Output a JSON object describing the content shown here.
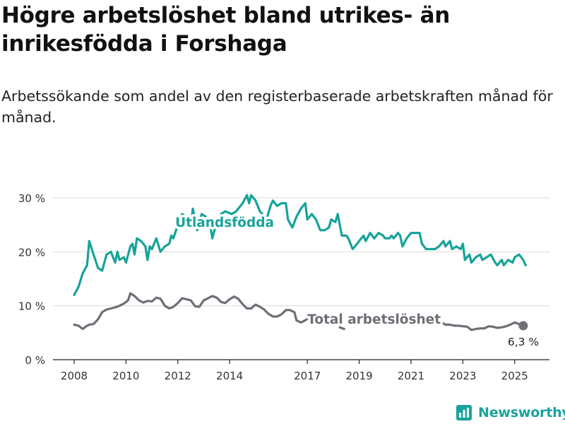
{
  "title": "Högre arbetslöshet bland utrikes- än inrikesfödda i Forshaga",
  "subtitle": "Arbetssökande som andel av den registerbaserade arbetskraften månad för månad.",
  "brand": "Newsworthy",
  "colors": {
    "utlandsfodda": "#17a39a",
    "total": "#6e6e76",
    "grid": "#d9d9d9",
    "brand": "#1aa39d"
  },
  "chart_data": {
    "type": "line",
    "x_unit": "year",
    "xlim": [
      2007.6,
      2026.2
    ],
    "ylim": [
      0,
      30
    ],
    "grid": true,
    "y_ticks": [
      0,
      10,
      20,
      30
    ],
    "y_tick_labels": [
      "0 %",
      "10 %",
      "20 %",
      "30 %"
    ],
    "x_ticks": [
      2008,
      2010,
      2012,
      2014,
      2017,
      2019,
      2021,
      2023,
      2025
    ],
    "x_tick_labels": [
      "2008",
      "2010",
      "2012",
      "2014",
      "2017",
      "2019",
      "2021",
      "2023",
      "2025"
    ],
    "end_label": "6,3 %",
    "series": [
      {
        "name": "Utlandsfödda",
        "color": "#17a39a",
        "points": [
          [
            2008.0,
            12
          ],
          [
            2008.17,
            13.5
          ],
          [
            2008.33,
            16
          ],
          [
            2008.5,
            17.5
          ],
          [
            2008.58,
            22
          ],
          [
            2008.75,
            19.5
          ],
          [
            2008.92,
            17
          ],
          [
            2009.08,
            16.5
          ],
          [
            2009.25,
            19.5
          ],
          [
            2009.42,
            20
          ],
          [
            2009.58,
            18
          ],
          [
            2009.67,
            20
          ],
          [
            2009.75,
            18.5
          ],
          [
            2009.92,
            19
          ],
          [
            2010.0,
            18
          ],
          [
            2010.17,
            21
          ],
          [
            2010.25,
            21.5
          ],
          [
            2010.33,
            19.5
          ],
          [
            2010.42,
            22.5
          ],
          [
            2010.58,
            22
          ],
          [
            2010.75,
            21
          ],
          [
            2010.83,
            18.5
          ],
          [
            2010.92,
            21
          ],
          [
            2011.0,
            20.5
          ],
          [
            2011.17,
            22.5
          ],
          [
            2011.33,
            20
          ],
          [
            2011.5,
            21
          ],
          [
            2011.67,
            21.5
          ],
          [
            2011.75,
            23
          ],
          [
            2011.83,
            22.5
          ],
          [
            2012.0,
            25
          ],
          [
            2012.17,
            27
          ],
          [
            2012.42,
            26
          ],
          [
            2012.5,
            24.5
          ],
          [
            2012.58,
            28
          ],
          [
            2012.75,
            24
          ],
          [
            2012.92,
            27
          ],
          [
            2013.08,
            26.5
          ],
          [
            2013.25,
            25
          ],
          [
            2013.33,
            22.5
          ],
          [
            2013.5,
            25.5
          ],
          [
            2013.67,
            27
          ],
          [
            2013.83,
            27.5
          ],
          [
            2014.08,
            27
          ],
          [
            2014.25,
            27.5
          ],
          [
            2014.5,
            29
          ],
          [
            2014.67,
            30.5
          ],
          [
            2014.75,
            29
          ],
          [
            2014.83,
            30.5
          ],
          [
            2015.0,
            29.5
          ],
          [
            2015.17,
            27.5
          ],
          [
            2015.42,
            26
          ],
          [
            2015.58,
            28.5
          ],
          [
            2015.67,
            29.5
          ],
          [
            2015.83,
            28.5
          ],
          [
            2016.0,
            29
          ],
          [
            2016.17,
            29
          ],
          [
            2016.25,
            26
          ],
          [
            2016.42,
            24.5
          ],
          [
            2016.58,
            26.5
          ],
          [
            2016.75,
            28
          ],
          [
            2016.92,
            29
          ],
          [
            2017.0,
            26
          ],
          [
            2017.17,
            27
          ],
          [
            2017.33,
            26
          ],
          [
            2017.5,
            24
          ],
          [
            2017.67,
            24
          ],
          [
            2017.83,
            24.5
          ],
          [
            2017.92,
            26
          ],
          [
            2018.08,
            25.5
          ],
          [
            2018.17,
            27
          ],
          [
            2018.33,
            23
          ],
          [
            2018.5,
            23
          ],
          [
            2018.58,
            22.5
          ],
          [
            2018.75,
            20.5
          ],
          [
            2018.92,
            21.5
          ],
          [
            2019.08,
            22.5
          ],
          [
            2019.17,
            23
          ],
          [
            2019.25,
            22
          ],
          [
            2019.42,
            23.5
          ],
          [
            2019.58,
            22.5
          ],
          [
            2019.75,
            23.5
          ],
          [
            2019.92,
            23
          ],
          [
            2020.0,
            22.5
          ],
          [
            2020.17,
            22.5
          ],
          [
            2020.25,
            23
          ],
          [
            2020.33,
            22.5
          ],
          [
            2020.5,
            23.5
          ],
          [
            2020.58,
            23
          ],
          [
            2020.67,
            21
          ],
          [
            2020.83,
            22.5
          ],
          [
            2021.0,
            23.5
          ],
          [
            2021.17,
            23.5
          ],
          [
            2021.33,
            23.5
          ],
          [
            2021.42,
            21.5
          ],
          [
            2021.58,
            20.5
          ],
          [
            2021.75,
            20.5
          ],
          [
            2021.92,
            20.5
          ],
          [
            2022.08,
            21
          ],
          [
            2022.25,
            22
          ],
          [
            2022.33,
            21
          ],
          [
            2022.5,
            22
          ],
          [
            2022.58,
            20.5
          ],
          [
            2022.75,
            21
          ],
          [
            2022.92,
            20.5
          ],
          [
            2023.0,
            21.5
          ],
          [
            2023.08,
            18.5
          ],
          [
            2023.25,
            19.5
          ],
          [
            2023.33,
            18
          ],
          [
            2023.5,
            19
          ],
          [
            2023.67,
            19.5
          ],
          [
            2023.75,
            18.5
          ],
          [
            2023.92,
            19
          ],
          [
            2024.08,
            19.5
          ],
          [
            2024.25,
            18
          ],
          [
            2024.33,
            17.5
          ],
          [
            2024.5,
            18.5
          ],
          [
            2024.58,
            17.5
          ],
          [
            2024.75,
            18.5
          ],
          [
            2024.92,
            18
          ],
          [
            2025.0,
            19
          ],
          [
            2025.17,
            19.5
          ],
          [
            2025.33,
            18.5
          ],
          [
            2025.42,
            17.5
          ]
        ]
      },
      {
        "name": "Total arbetslöshet",
        "color": "#6e6e76",
        "points": [
          [
            2008.0,
            6.5
          ],
          [
            2008.17,
            6.3
          ],
          [
            2008.33,
            5.7
          ],
          [
            2008.5,
            6.3
          ],
          [
            2008.58,
            6.5
          ],
          [
            2008.75,
            6.6
          ],
          [
            2008.92,
            7.5
          ],
          [
            2009.08,
            8.8
          ],
          [
            2009.25,
            9.3
          ],
          [
            2009.42,
            9.5
          ],
          [
            2009.58,
            9.7
          ],
          [
            2009.75,
            10
          ],
          [
            2009.92,
            10.4
          ],
          [
            2010.08,
            11
          ],
          [
            2010.17,
            12.3
          ],
          [
            2010.33,
            11.8
          ],
          [
            2010.5,
            11
          ],
          [
            2010.67,
            10.6
          ],
          [
            2010.83,
            10.9
          ],
          [
            2011.0,
            10.8
          ],
          [
            2011.17,
            11.5
          ],
          [
            2011.33,
            11.3
          ],
          [
            2011.5,
            10
          ],
          [
            2011.67,
            9.5
          ],
          [
            2011.83,
            9.8
          ],
          [
            2012.0,
            10.5
          ],
          [
            2012.17,
            11.4
          ],
          [
            2012.33,
            11.2
          ],
          [
            2012.5,
            11
          ],
          [
            2012.67,
            9.9
          ],
          [
            2012.83,
            9.8
          ],
          [
            2013.0,
            11
          ],
          [
            2013.17,
            11.4
          ],
          [
            2013.33,
            11.8
          ],
          [
            2013.5,
            11.5
          ],
          [
            2013.67,
            10.7
          ],
          [
            2013.83,
            10.5
          ],
          [
            2014.0,
            11.2
          ],
          [
            2014.17,
            11.7
          ],
          [
            2014.33,
            11.3
          ],
          [
            2014.5,
            10.3
          ],
          [
            2014.67,
            9.5
          ],
          [
            2014.83,
            9.5
          ],
          [
            2015.0,
            10.2
          ],
          [
            2015.17,
            9.8
          ],
          [
            2015.33,
            9.3
          ],
          [
            2015.5,
            8.5
          ],
          [
            2015.67,
            8
          ],
          [
            2015.83,
            8
          ],
          [
            2016.0,
            8.4
          ],
          [
            2016.17,
            9.2
          ],
          [
            2016.33,
            9.2
          ],
          [
            2016.5,
            8.8
          ],
          [
            2016.58,
            7.3
          ],
          [
            2016.75,
            6.9
          ],
          [
            2016.92,
            7.3
          ],
          [
            2017.0,
            7.6
          ],
          [
            2018.25,
            6.0
          ],
          [
            2018.42,
            5.7
          ],
          [
            2021.0,
            8.5
          ],
          [
            2022.0,
            7.1
          ],
          [
            2022.17,
            6.9
          ],
          [
            2022.33,
            6.5
          ],
          [
            2022.5,
            6.5
          ],
          [
            2022.67,
            6.3
          ],
          [
            2022.83,
            6.3
          ],
          [
            2023.0,
            6.2
          ],
          [
            2023.17,
            6.1
          ],
          [
            2023.33,
            5.5
          ],
          [
            2023.5,
            5.7
          ],
          [
            2023.67,
            5.8
          ],
          [
            2023.83,
            5.8
          ],
          [
            2024.0,
            6.2
          ],
          [
            2024.17,
            6.1
          ],
          [
            2024.33,
            5.9
          ],
          [
            2024.5,
            6.0
          ],
          [
            2024.67,
            6.2
          ],
          [
            2024.83,
            6.5
          ],
          [
            2025.0,
            6.9
          ],
          [
            2025.17,
            6.6
          ],
          [
            2025.33,
            6.3
          ]
        ]
      }
    ]
  }
}
